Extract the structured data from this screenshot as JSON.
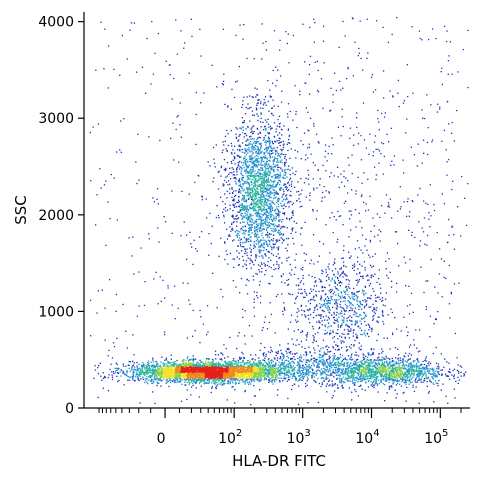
{
  "chart_data": {
    "type": "scatter",
    "style": "density-colored flow cytometry dot plot",
    "xlabel": "HLA-DR  FITC",
    "ylabel": "SSC",
    "x_scale": "biexponential",
    "x_ticks": [
      {
        "value": 0,
        "base": "0",
        "exp": ""
      },
      {
        "value": 100,
        "base": "10",
        "exp": "2"
      },
      {
        "value": 1000,
        "base": "10",
        "exp": "3"
      },
      {
        "value": 10000,
        "base": "10",
        "exp": "4"
      },
      {
        "value": 100000,
        "base": "10",
        "exp": "5"
      }
    ],
    "ylim": [
      0,
      4100
    ],
    "y_ticks": [
      {
        "value": 0,
        "label": "0"
      },
      {
        "value": 1000,
        "label": "1000"
      },
      {
        "value": 2000,
        "label": "2000"
      },
      {
        "value": 3000,
        "label": "3000"
      },
      {
        "value": 4000,
        "label": "4000"
      }
    ],
    "density_colors": [
      "#1a33b8",
      "#1f8ecf",
      "#2bb5a0",
      "#8cd24a",
      "#f2e22a",
      "#f08a1c",
      "#e8201a"
    ],
    "populations": [
      {
        "cx": 40,
        "cy": 380,
        "sx_decades": 0.55,
        "sy": 50,
        "weight": 0.42
      },
      {
        "cx": 230,
        "cy": 2250,
        "sx_decades": 0.22,
        "sy": 380,
        "weight": 0.22
      },
      {
        "cx": 3500,
        "cy": 1050,
        "sx_decades": 0.35,
        "sy": 250,
        "weight": 0.07
      },
      {
        "cx": 15000,
        "cy": 380,
        "sx_decades": 0.45,
        "sy": 70,
        "weight": 0.14
      },
      {
        "cx": 1200,
        "cy": 450,
        "sx_decades": 0.6,
        "sy": 90,
        "weight": 0.07
      },
      {
        "cx": 3000,
        "cy": 2000,
        "sx_decades": 1.2,
        "sy": 1100,
        "weight": 0.08
      }
    ]
  }
}
